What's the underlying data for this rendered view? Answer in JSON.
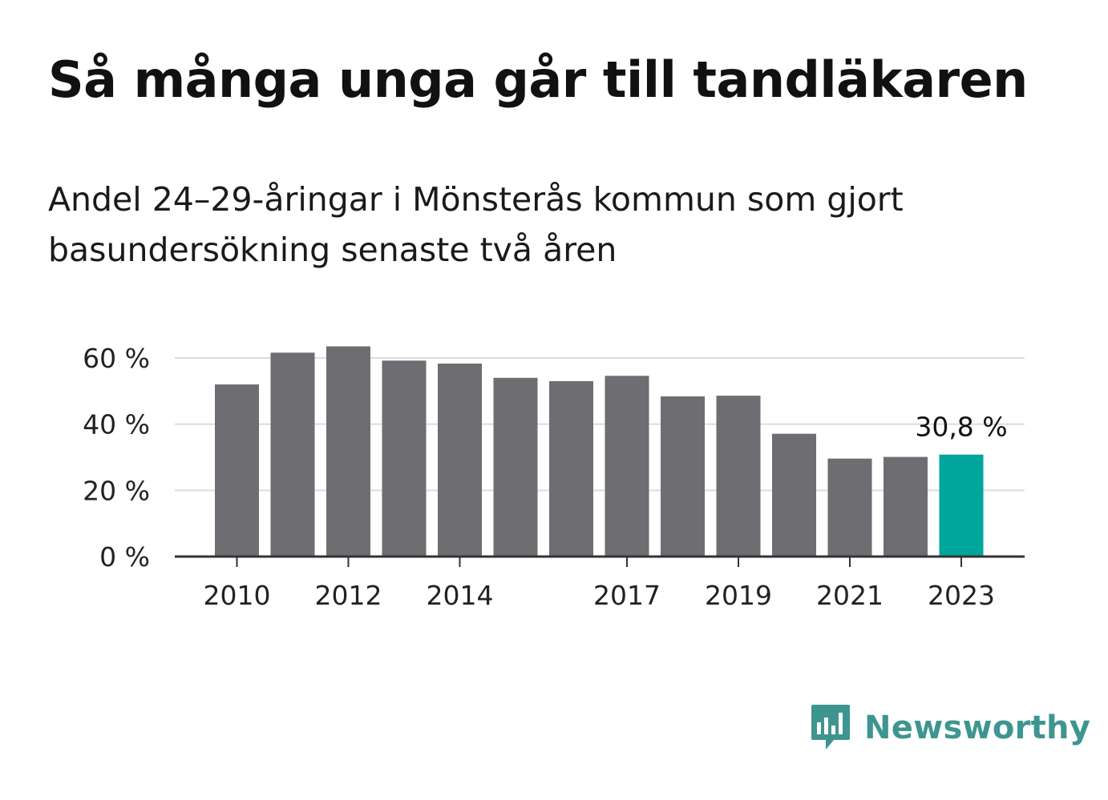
{
  "header": {
    "title": "Så många unga går till tandläkaren",
    "subtitle": "Andel 24–29-åringar i Mönsterås kommun som gjort basundersökning senaste två åren"
  },
  "brand": {
    "name": "Newsworthy",
    "icon": "newsworthy-logo-icon",
    "color": "#3e9590"
  },
  "chart_data": {
    "type": "bar",
    "categories": [
      "2010",
      "2011",
      "2012",
      "2013",
      "2014",
      "2015",
      "2016",
      "2017",
      "2018",
      "2019",
      "2020",
      "2021",
      "2022",
      "2023"
    ],
    "values": [
      52.0,
      61.6,
      63.5,
      59.2,
      58.3,
      54.0,
      53.0,
      54.6,
      48.4,
      48.6,
      37.1,
      29.6,
      30.1,
      30.8
    ],
    "value_unit": "%",
    "tick_labels_x": [
      "2010",
      "2012",
      "2014",
      "2017",
      "2019",
      "2021",
      "2023"
    ],
    "yticks": [
      0,
      20,
      40,
      60
    ],
    "ytick_labels": [
      "0 %",
      "20 %",
      "40 %",
      "60 %"
    ],
    "ylim": [
      0,
      60
    ],
    "grid": true,
    "legend": "none",
    "bar_color": "#6e6d72",
    "highlight_color": "#00a59b",
    "highlight_index": 13,
    "annotations": [
      {
        "category": "2023",
        "text": "30,8 %"
      }
    ]
  }
}
